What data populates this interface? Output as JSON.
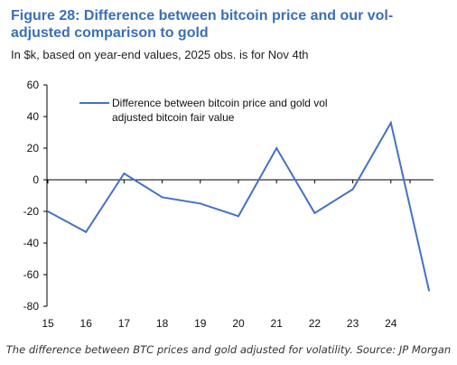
{
  "figure": {
    "title": "Figure 28: Difference between bitcoin price and our vol-adjusted comparison to gold",
    "subtitle": "In $k, based on year-end values, 2025 obs. is for Nov 4th",
    "caption": "The difference between BTC prices and gold adjusted for volatility. Source: JP Morgan"
  },
  "colors": {
    "series": "#4472c4",
    "title": "#3b6fb6"
  },
  "chart_data": {
    "type": "line",
    "x": [
      "15",
      "16",
      "17",
      "18",
      "19",
      "20",
      "21",
      "22",
      "23",
      "24",
      "25"
    ],
    "x_tick_labels": [
      "15",
      "16",
      "17",
      "18",
      "19",
      "20",
      "21",
      "22",
      "23",
      "24"
    ],
    "series": [
      {
        "name": "Difference between bitcoin price and gold vol adjusted bitcoin fair value",
        "legend_lines": [
          "Difference between bitcoin price and gold vol",
          "adjusted bitcoin fair value"
        ],
        "values": [
          -20,
          -33,
          4,
          -11,
          -15,
          -23,
          20,
          -21,
          -6,
          36,
          -70
        ]
      }
    ],
    "y_ticks": [
      "60",
      "40",
      "20",
      "0",
      "-20",
      "-40",
      "-60",
      "-80"
    ],
    "ylim": [
      -80,
      60
    ],
    "grid": false,
    "legend": "top-left"
  }
}
